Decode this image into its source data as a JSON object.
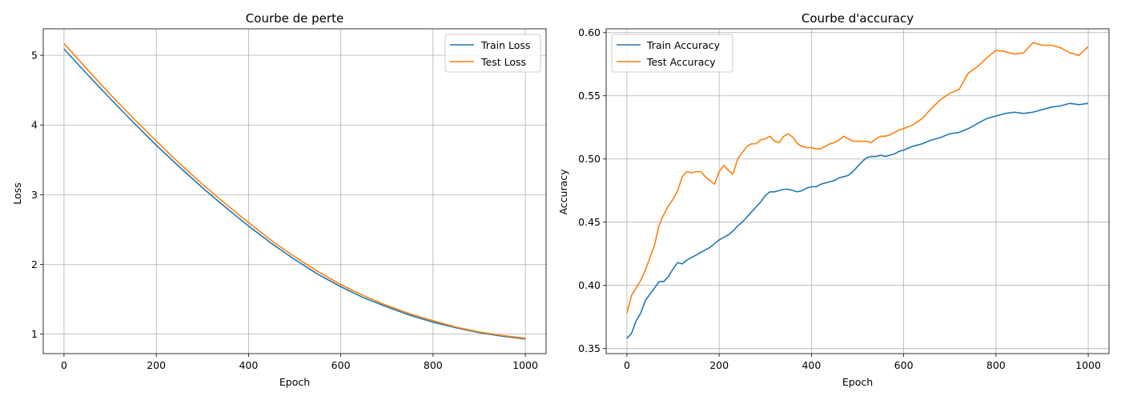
{
  "chart_data": [
    {
      "type": "line",
      "title": "Courbe de perte",
      "xlabel": "Epoch",
      "ylabel": "Loss",
      "xlim": [
        -45,
        1045
      ],
      "ylim": [
        0.72,
        5.38
      ],
      "xticks": [
        0,
        200,
        400,
        600,
        800,
        1000
      ],
      "yticks": [
        1,
        2,
        3,
        4,
        5
      ],
      "xtick_labels": [
        "0",
        "200",
        "400",
        "600",
        "800",
        "1000"
      ],
      "ytick_labels": [
        "1",
        "2",
        "3",
        "4",
        "5"
      ],
      "grid": true,
      "legend": "top-right",
      "series": [
        {
          "name": "Train Loss",
          "color": "#1f77b4",
          "x": [
            0,
            50,
            100,
            150,
            200,
            250,
            300,
            350,
            400,
            450,
            500,
            550,
            600,
            650,
            700,
            750,
            800,
            850,
            900,
            950,
            1000
          ],
          "y": [
            5.09,
            4.73,
            4.38,
            4.04,
            3.71,
            3.4,
            3.1,
            2.82,
            2.55,
            2.3,
            2.07,
            1.86,
            1.68,
            1.52,
            1.39,
            1.27,
            1.17,
            1.09,
            1.02,
            0.97,
            0.93
          ]
        },
        {
          "name": "Test Loss",
          "color": "#ff7f0e",
          "x": [
            0,
            50,
            100,
            150,
            200,
            250,
            300,
            350,
            400,
            450,
            500,
            550,
            600,
            650,
            700,
            750,
            800,
            850,
            900,
            950,
            1000
          ],
          "y": [
            5.17,
            4.8,
            4.44,
            4.1,
            3.77,
            3.45,
            3.15,
            2.87,
            2.6,
            2.34,
            2.11,
            1.9,
            1.71,
            1.55,
            1.41,
            1.29,
            1.19,
            1.1,
            1.03,
            0.98,
            0.94
          ]
        }
      ]
    },
    {
      "type": "line",
      "title": "Courbe d'accuracy",
      "xlabel": "Epoch",
      "ylabel": "Accuracy",
      "xlim": [
        -45,
        1045
      ],
      "ylim": [
        0.346,
        0.603
      ],
      "xticks": [
        0,
        200,
        400,
        600,
        800,
        1000
      ],
      "yticks": [
        0.35,
        0.4,
        0.45,
        0.5,
        0.55,
        0.6
      ],
      "xtick_labels": [
        "0",
        "200",
        "400",
        "600",
        "800",
        "1000"
      ],
      "ytick_labels": [
        "0.35",
        "0.40",
        "0.45",
        "0.50",
        "0.55",
        "0.60"
      ],
      "grid": true,
      "legend": "top-left",
      "series": [
        {
          "name": "Train Accuracy",
          "color": "#1f77b4",
          "x": [
            0,
            10,
            20,
            30,
            40,
            50,
            60,
            70,
            80,
            90,
            100,
            110,
            120,
            130,
            140,
            150,
            160,
            170,
            180,
            190,
            200,
            210,
            220,
            230,
            240,
            250,
            260,
            270,
            280,
            290,
            300,
            310,
            320,
            330,
            340,
            350,
            360,
            370,
            380,
            390,
            400,
            410,
            420,
            430,
            440,
            450,
            460,
            470,
            480,
            490,
            500,
            510,
            520,
            530,
            540,
            550,
            560,
            570,
            580,
            590,
            600,
            620,
            640,
            660,
            680,
            700,
            720,
            740,
            760,
            780,
            800,
            820,
            840,
            860,
            880,
            900,
            920,
            940,
            960,
            980,
            1000
          ],
          "y": [
            0.358,
            0.362,
            0.372,
            0.378,
            0.388,
            0.393,
            0.398,
            0.403,
            0.403,
            0.407,
            0.413,
            0.418,
            0.417,
            0.42,
            0.422,
            0.424,
            0.426,
            0.428,
            0.43,
            0.433,
            0.436,
            0.438,
            0.44,
            0.443,
            0.447,
            0.45,
            0.454,
            0.458,
            0.462,
            0.466,
            0.471,
            0.474,
            0.474,
            0.475,
            0.476,
            0.476,
            0.475,
            0.474,
            0.475,
            0.477,
            0.478,
            0.478,
            0.48,
            0.481,
            0.482,
            0.483,
            0.485,
            0.486,
            0.487,
            0.49,
            0.494,
            0.498,
            0.501,
            0.502,
            0.502,
            0.503,
            0.502,
            0.503,
            0.504,
            0.506,
            0.507,
            0.51,
            0.512,
            0.515,
            0.517,
            0.52,
            0.521,
            0.524,
            0.528,
            0.532,
            0.534,
            0.536,
            0.537,
            0.536,
            0.537,
            0.539,
            0.541,
            0.542,
            0.544,
            0.543,
            0.544
          ]
        },
        {
          "name": "Test Accuracy",
          "color": "#ff7f0e",
          "x": [
            0,
            10,
            20,
            30,
            40,
            50,
            60,
            70,
            80,
            90,
            100,
            110,
            120,
            130,
            140,
            150,
            160,
            170,
            180,
            190,
            200,
            210,
            220,
            230,
            240,
            250,
            260,
            270,
            280,
            290,
            300,
            310,
            320,
            330,
            340,
            350,
            360,
            370,
            380,
            390,
            400,
            410,
            420,
            430,
            440,
            450,
            460,
            470,
            480,
            490,
            500,
            510,
            520,
            530,
            540,
            550,
            560,
            570,
            580,
            590,
            600,
            620,
            640,
            660,
            680,
            700,
            720,
            740,
            760,
            780,
            800,
            820,
            840,
            860,
            880,
            900,
            920,
            940,
            960,
            980,
            1000
          ],
          "y": [
            0.378,
            0.392,
            0.398,
            0.404,
            0.412,
            0.422,
            0.432,
            0.448,
            0.456,
            0.463,
            0.468,
            0.475,
            0.486,
            0.49,
            0.489,
            0.49,
            0.49,
            0.486,
            0.483,
            0.48,
            0.49,
            0.495,
            0.491,
            0.488,
            0.5,
            0.505,
            0.51,
            0.512,
            0.512,
            0.515,
            0.516,
            0.518,
            0.514,
            0.513,
            0.518,
            0.52,
            0.517,
            0.512,
            0.51,
            0.509,
            0.509,
            0.508,
            0.508,
            0.51,
            0.512,
            0.513,
            0.515,
            0.518,
            0.516,
            0.514,
            0.514,
            0.514,
            0.514,
            0.513,
            0.516,
            0.518,
            0.518,
            0.519,
            0.521,
            0.523,
            0.524,
            0.527,
            0.532,
            0.54,
            0.547,
            0.552,
            0.555,
            0.568,
            0.573,
            0.58,
            0.586,
            0.585,
            0.583,
            0.584,
            0.592,
            0.59,
            0.59,
            0.588,
            0.584,
            0.582,
            0.589
          ]
        }
      ]
    }
  ]
}
